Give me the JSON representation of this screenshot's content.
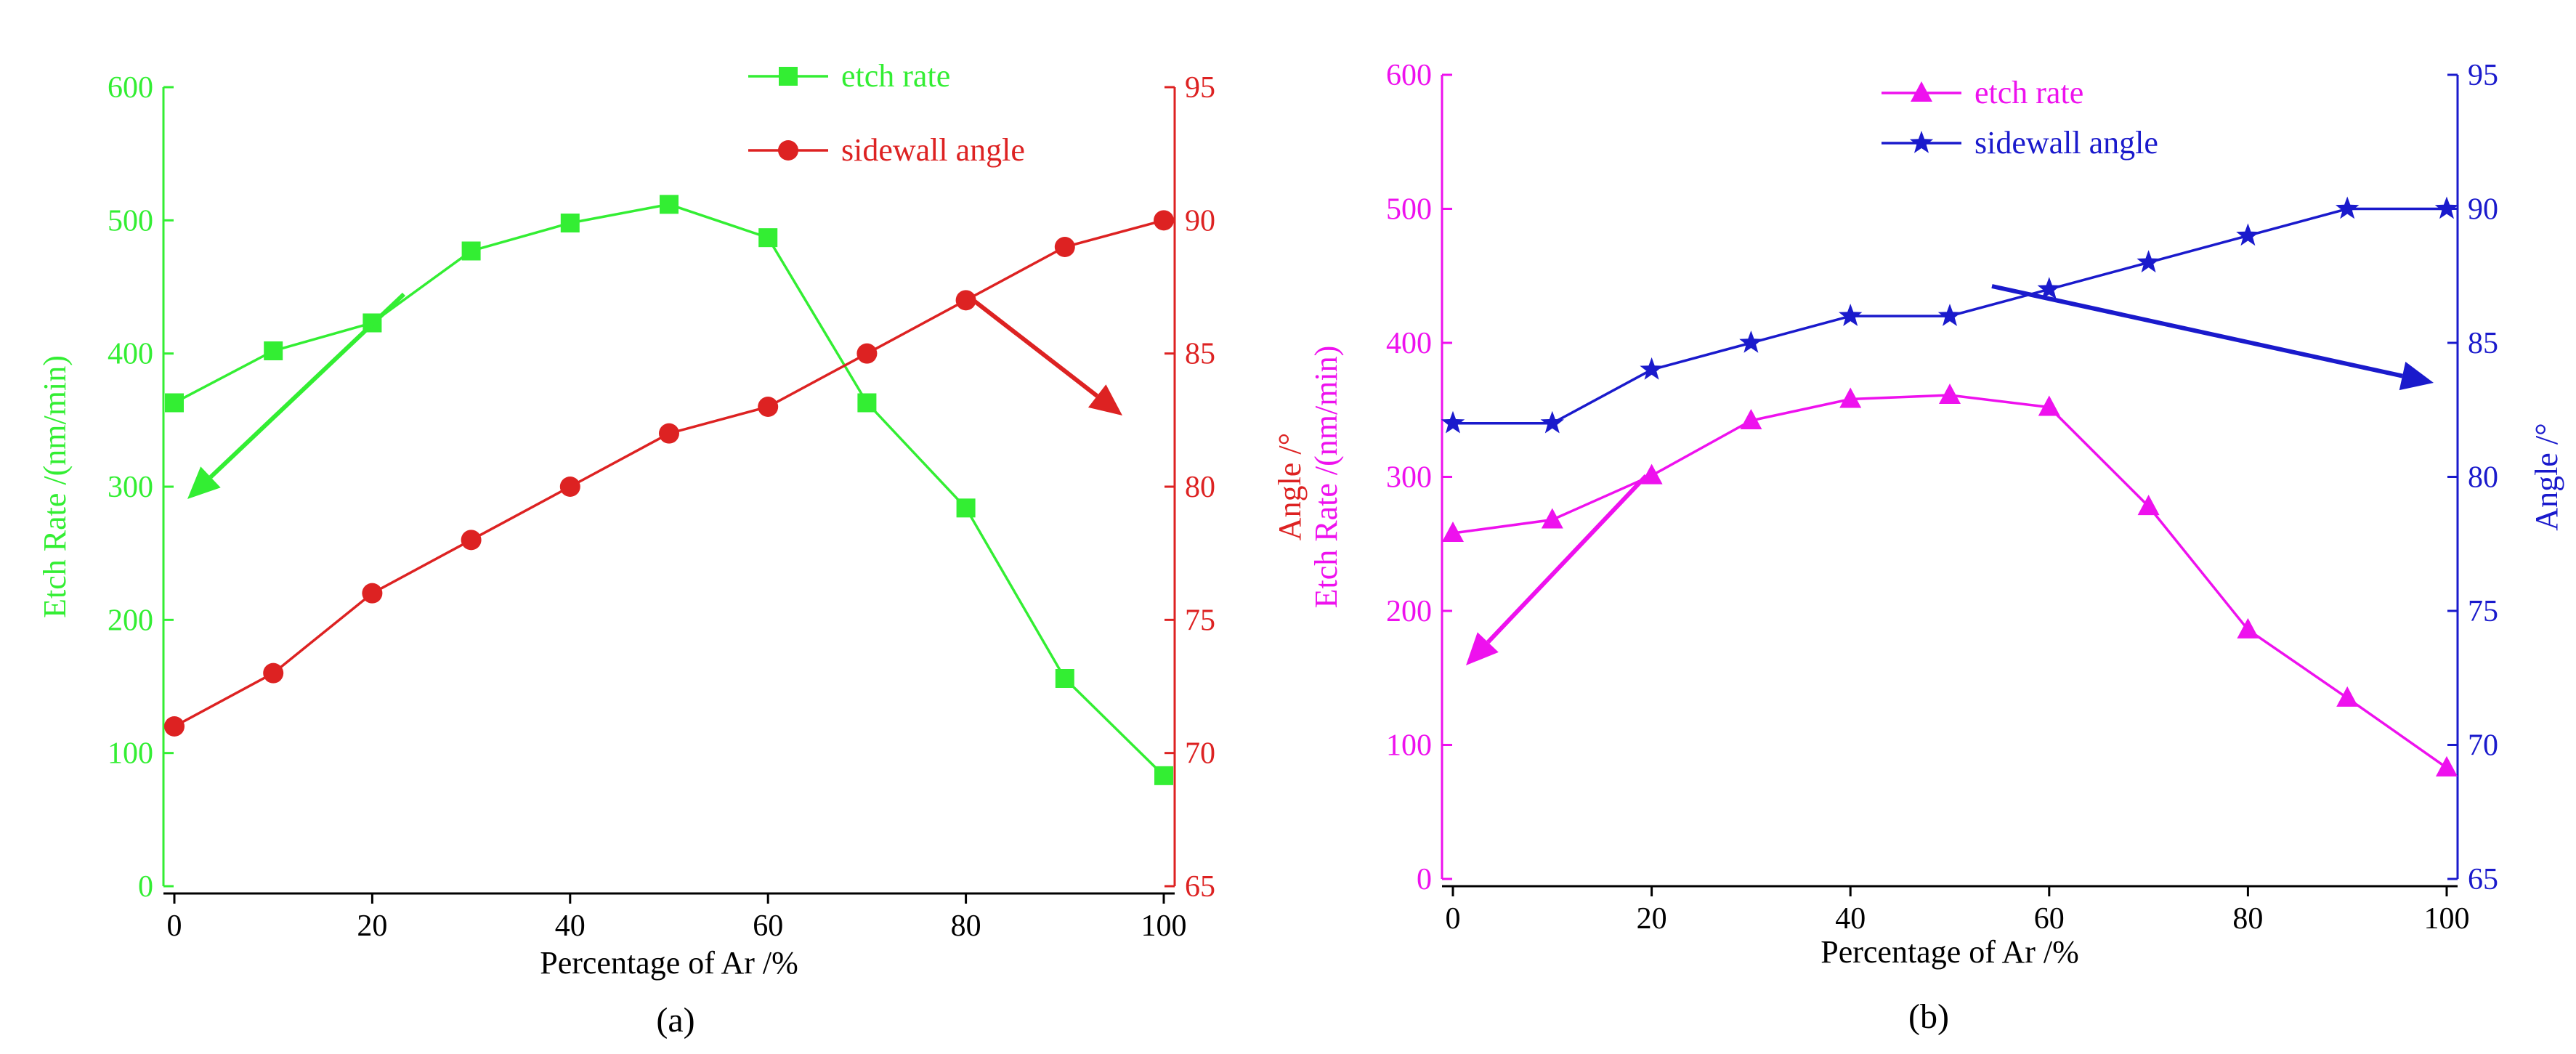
{
  "charts": [
    {
      "panel_label": "(a)",
      "colors": {
        "rate": "#33ee33",
        "angle": "#dd2222",
        "x_axis": "#000000"
      },
      "markers": {
        "rate": "square",
        "angle": "circle"
      }
    },
    {
      "panel_label": "(b)",
      "colors": {
        "rate": "#ee11ee",
        "angle": "#1a1acc",
        "x_axis": "#000000"
      },
      "markers": {
        "rate": "triangle",
        "angle": "star"
      }
    }
  ],
  "chart_data": [
    {
      "type": "line",
      "x": [
        0,
        10,
        20,
        30,
        40,
        50,
        60,
        70,
        80,
        90,
        100
      ],
      "xlabel": "Percentage of Ar /%",
      "xlim": [
        0,
        100
      ],
      "xticks": [
        "0",
        "20",
        "40",
        "60",
        "80",
        "100"
      ],
      "ylabel": "Etch Rate /(nm/min)",
      "ylim": [
        0,
        600
      ],
      "yticks": [
        "0",
        "100",
        "200",
        "300",
        "400",
        "500",
        "600"
      ],
      "y2label": "Angle /°",
      "y2lim": [
        65,
        95
      ],
      "y2ticks": [
        "65",
        "70",
        "75",
        "80",
        "85",
        "90",
        "95"
      ],
      "legend_position": "top-center",
      "grid": false,
      "series": [
        {
          "name": "etch rate",
          "axis": "left",
          "values": [
            363,
            402,
            423,
            477,
            498,
            512,
            487,
            363,
            284,
            156,
            83
          ]
        },
        {
          "name": "sidewall angle",
          "axis": "right",
          "values": [
            71,
            73,
            76,
            78,
            80,
            82,
            83,
            85,
            87,
            89,
            90
          ]
        }
      ],
      "annotations": [
        {
          "type": "arrow",
          "series": "etch rate",
          "points_to": "left axis"
        },
        {
          "type": "arrow",
          "series": "sidewall angle",
          "points_to": "right axis"
        }
      ]
    },
    {
      "type": "line",
      "x": [
        0,
        10,
        20,
        30,
        40,
        50,
        60,
        70,
        80,
        90,
        100
      ],
      "xlabel": "Percentage of Ar /%",
      "xlim": [
        0,
        100
      ],
      "xticks": [
        "0",
        "20",
        "40",
        "60",
        "80",
        "100"
      ],
      "ylabel": "Etch Rate /(nm/min)",
      "ylim": [
        0,
        600
      ],
      "yticks": [
        "0",
        "100",
        "200",
        "300",
        "400",
        "500",
        "600"
      ],
      "y2label": "Angle /°",
      "y2lim": [
        65,
        95
      ],
      "y2ticks": [
        "65",
        "70",
        "75",
        "80",
        "85",
        "90",
        "95"
      ],
      "legend_position": "top-center",
      "grid": false,
      "series": [
        {
          "name": "etch rate",
          "axis": "left",
          "values": [
            258,
            268,
            301,
            342,
            358,
            361,
            352,
            278,
            186,
            135,
            83
          ]
        },
        {
          "name": "sidewall angle",
          "axis": "right",
          "values": [
            82,
            82,
            84,
            85,
            86,
            86,
            87,
            88,
            89,
            90,
            90
          ]
        }
      ],
      "annotations": [
        {
          "type": "arrow",
          "series": "etch rate",
          "points_to": "left axis"
        },
        {
          "type": "arrow",
          "series": "sidewall angle",
          "points_to": "right axis"
        }
      ]
    }
  ]
}
